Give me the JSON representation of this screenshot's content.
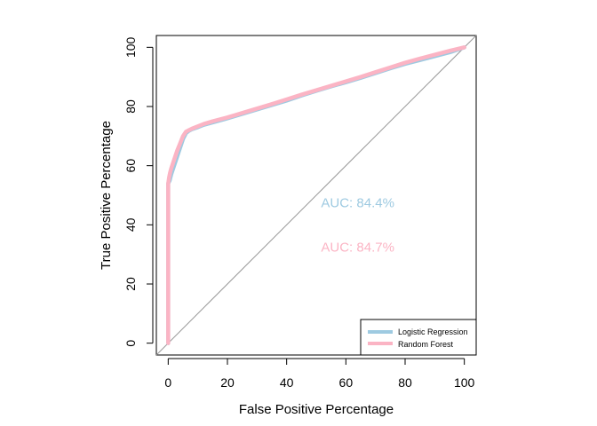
{
  "chart_data": {
    "type": "line",
    "title": "",
    "xlabel": "False Positive Percentage",
    "ylabel": "True Positive Percentage",
    "xlim": [
      -4,
      104
    ],
    "ylim": [
      -4,
      104
    ],
    "xticks": [
      0,
      20,
      40,
      60,
      80,
      100
    ],
    "yticks": [
      0,
      20,
      40,
      60,
      80,
      100
    ],
    "tick_labels_x": [
      "0",
      "20",
      "40",
      "60",
      "80",
      "100"
    ],
    "tick_labels_y": [
      "0",
      "20",
      "40",
      "60",
      "80",
      "100"
    ],
    "grid": false,
    "legend_position": "bottom-right",
    "reference_line": {
      "x": [
        -4,
        104
      ],
      "y": [
        -4,
        104
      ],
      "color": "#999999"
    },
    "series": [
      {
        "name": "Logistic Regression",
        "color": "#9ecae1",
        "x": [
          0,
          0,
          0.5,
          1,
          2,
          3,
          4,
          5,
          6,
          7,
          8,
          10,
          12,
          15,
          20,
          25,
          30,
          35,
          40,
          45,
          50,
          55,
          60,
          65,
          70,
          75,
          80,
          85,
          90,
          95,
          100
        ],
        "y": [
          0,
          54,
          55,
          57,
          60,
          63,
          66,
          69,
          71,
          71.8,
          72.3,
          73,
          73.8,
          74.6,
          76,
          77.5,
          79,
          80.5,
          82,
          83.7,
          85.3,
          86.8,
          88.2,
          89.7,
          91.3,
          92.9,
          94.4,
          95.7,
          97,
          98.3,
          100
        ]
      },
      {
        "name": "Random Forest",
        "color": "#fbb4c4",
        "x": [
          0,
          0,
          0.3,
          0.6,
          1,
          2,
          3,
          4,
          5,
          6,
          7,
          8,
          10,
          12,
          15,
          20,
          25,
          30,
          35,
          40,
          45,
          50,
          55,
          60,
          65,
          70,
          75,
          80,
          85,
          90,
          95,
          100
        ],
        "y": [
          0,
          54,
          56,
          57.5,
          59,
          62,
          65,
          67.5,
          70,
          71.5,
          72,
          72.5,
          73.3,
          74.1,
          75,
          76.3,
          77.8,
          79.3,
          80.8,
          82.4,
          84,
          85.5,
          87,
          88.5,
          90,
          91.6,
          93.2,
          94.8,
          96.2,
          97.5,
          98.8,
          100
        ]
      }
    ],
    "annotations": [
      {
        "text": "AUC: 84.4%",
        "x": 64,
        "y": 47.5,
        "color": "#9ecae1"
      },
      {
        "text": "AUC: 84.7%",
        "x": 64,
        "y": 32.5,
        "color": "#fbb4c4"
      }
    ]
  }
}
